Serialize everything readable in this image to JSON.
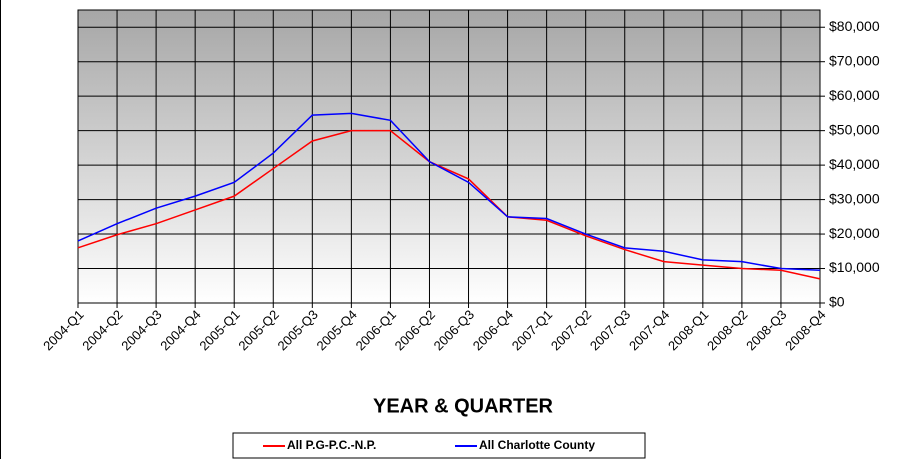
{
  "chart_data": {
    "type": "line",
    "x_label": "YEAR & QUARTER",
    "categories": [
      "2004-Q1",
      "2004-Q2",
      "2004-Q3",
      "2004-Q4",
      "2005-Q1",
      "2005-Q2",
      "2005-Q3",
      "2005-Q4",
      "2006-Q1",
      "2006-Q2",
      "2006-Q3",
      "2006-Q4",
      "2007-Q1",
      "2007-Q2",
      "2007-Q3",
      "2007-Q4",
      "2008-Q1",
      "2008-Q2",
      "2008-Q3",
      "2008-Q4"
    ],
    "series": [
      {
        "name": "All P.G-P.C.-N.P.",
        "color": "#ff0000",
        "values": [
          16000,
          19800,
          23000,
          27000,
          31000,
          39000,
          47000,
          50000,
          50000,
          41000,
          36000,
          25000,
          24000,
          19500,
          15500,
          12000,
          11000,
          10000,
          9500,
          7000
        ]
      },
      {
        "name": "All Charlotte County",
        "color": "#0000ff",
        "values": [
          18000,
          23000,
          27500,
          31000,
          35000,
          43500,
          54500,
          55000,
          53000,
          41000,
          35000,
          25000,
          24500,
          20000,
          16000,
          15000,
          12500,
          12000,
          10000,
          9500
        ]
      }
    ],
    "ylim": [
      0,
      85000
    ],
    "yticks": [
      {
        "value": 0,
        "label": "$0"
      },
      {
        "value": 10000,
        "label": "$10,000"
      },
      {
        "value": 20000,
        "label": "$20,000"
      },
      {
        "value": 30000,
        "label": "$30,000"
      },
      {
        "value": 40000,
        "label": "$40,000"
      },
      {
        "value": 50000,
        "label": "$50,000"
      },
      {
        "value": 60000,
        "label": "$60,000"
      },
      {
        "value": 70000,
        "label": "$70,000"
      },
      {
        "value": 80000,
        "label": "$80,000"
      }
    ],
    "y_axis_side": "right",
    "grid": true,
    "legend": "bottom"
  }
}
